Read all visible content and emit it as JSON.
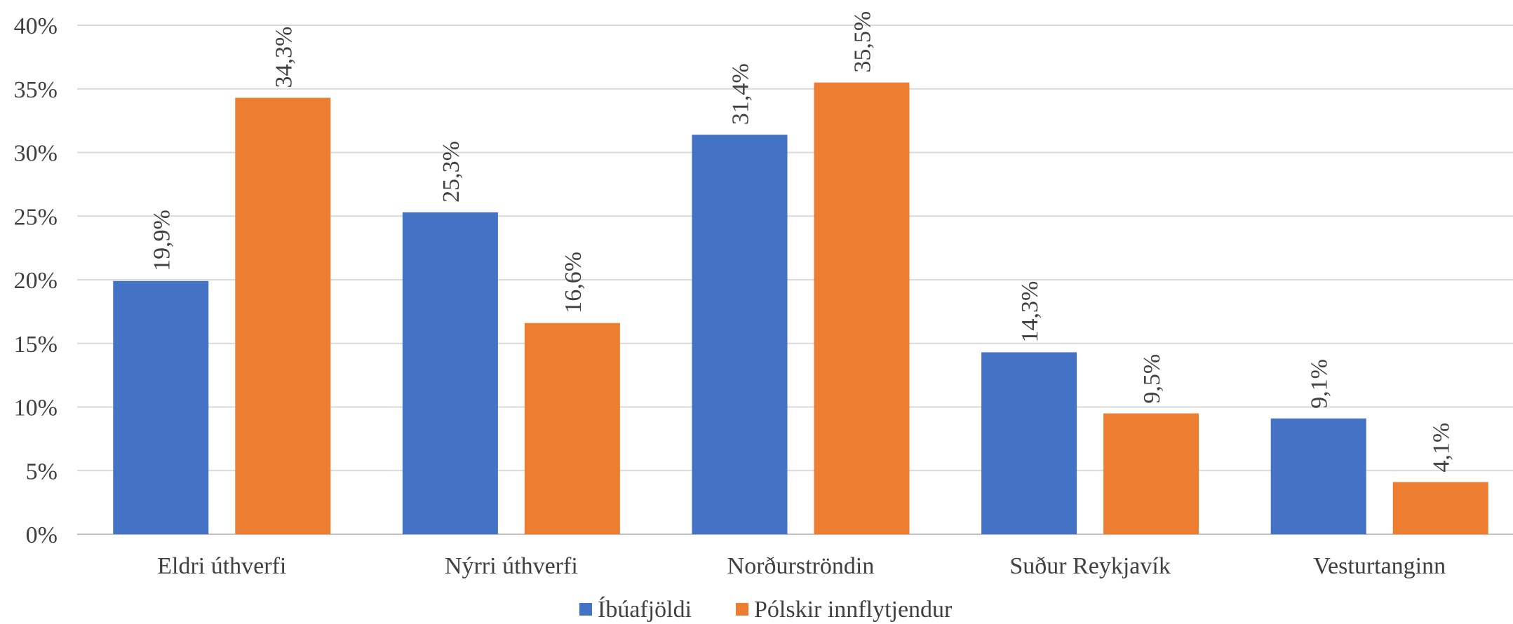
{
  "chart_data": {
    "type": "bar",
    "categories": [
      "Eldri úthverfi",
      "Nýrri úthverfi",
      "Norðurströndin",
      "Suður Reykjavík",
      "Vesturtanginn"
    ],
    "series": [
      {
        "name": "Íbúafjöldi",
        "color": "#4472c4",
        "values": [
          19.9,
          25.3,
          31.4,
          14.3,
          9.1
        ],
        "labels": [
          "19,9%",
          "25,3%",
          "31,4%",
          "14,3%",
          "9,1%"
        ]
      },
      {
        "name": "Pólskir innflytjendur",
        "color": "#ed7d31",
        "values": [
          34.3,
          16.6,
          35.5,
          9.5,
          4.1
        ],
        "labels": [
          "34,3%",
          "16,6%",
          "35,5%",
          "9,5%",
          "4,1%"
        ]
      }
    ],
    "yticks": [
      "0%",
      "5%",
      "10%",
      "15%",
      "20%",
      "25%",
      "30%",
      "35%",
      "40%"
    ],
    "ylim": [
      0,
      40
    ],
    "grid": true,
    "legend_position": "bottom"
  }
}
